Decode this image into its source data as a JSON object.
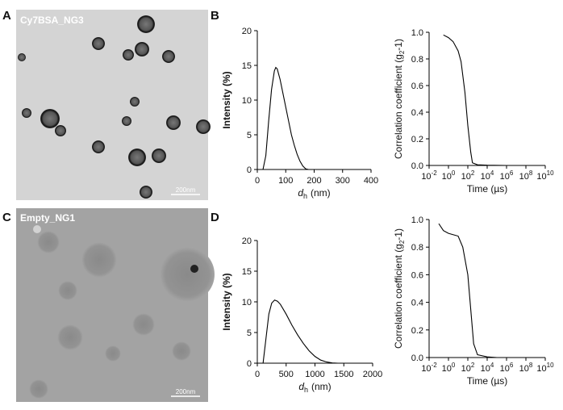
{
  "panels": [
    {
      "letter": "A",
      "label": "Cy7BSA_NG3",
      "scale_bar": "200nm"
    },
    {
      "letter": "B"
    },
    {
      "letter": "C",
      "label": "Empty_NG1",
      "scale_bar": "200nm"
    },
    {
      "letter": "D"
    }
  ],
  "chart_data": [
    {
      "type": "line",
      "xscale": "linear",
      "color": "#000000",
      "x_label": {
        "symbol": "d",
        "subscript": "h",
        "unit": "(nm)"
      },
      "y_label": {
        "text": "Intensity (%)"
      },
      "x": [
        20,
        30,
        40,
        50,
        60,
        65,
        70,
        80,
        90,
        100,
        110,
        120,
        130,
        140,
        150,
        160,
        170,
        180
      ],
      "values": [
        0,
        2,
        7,
        11.5,
        14.2,
        14.7,
        14.5,
        13,
        11,
        9,
        7,
        5,
        3.5,
        2.2,
        1.2,
        0.5,
        0.1,
        0
      ],
      "xlim": [
        0,
        400
      ],
      "xticks": [
        0,
        100,
        200,
        300,
        400
      ],
      "ylim": [
        0,
        20
      ],
      "yticks": [
        0,
        5,
        10,
        15,
        20
      ]
    },
    {
      "type": "line",
      "xscale": "log",
      "color": "#000000",
      "x_label": {
        "text": "Time (µs)"
      },
      "y_label": {
        "text": "Correlation coefficient (g",
        "subscript": "2",
        "after": "-1)"
      },
      "x": [
        0.3,
        1,
        3,
        10,
        20,
        50,
        100,
        200,
        300,
        1000,
        10000,
        1000000
      ],
      "values": [
        0.98,
        0.96,
        0.93,
        0.86,
        0.78,
        0.55,
        0.3,
        0.1,
        0.02,
        0.005,
        0.002,
        0
      ],
      "xlim": [
        0.01,
        10000000000
      ],
      "xticks": [
        {
          "value": 0.01,
          "label": "10",
          "exponent": "-2"
        },
        {
          "value": 1,
          "label": "10",
          "exponent": "0"
        },
        {
          "value": 100,
          "label": "10",
          "exponent": "2"
        },
        {
          "value": 10000,
          "label": "10",
          "exponent": "4"
        },
        {
          "value": 1000000,
          "label": "10",
          "exponent": "6"
        },
        {
          "value": 100000000,
          "label": "10",
          "exponent": "8"
        },
        {
          "value": 10000000000,
          "label": "10",
          "exponent": "10"
        }
      ],
      "ylim": [
        0,
        1
      ],
      "yticks": [
        {
          "value": 0,
          "label": "0.0"
        },
        {
          "value": 0.2,
          "label": "0.2"
        },
        {
          "value": 0.4,
          "label": "0.4"
        },
        {
          "value": 0.6,
          "label": "0.6"
        },
        {
          "value": 0.8,
          "label": "0.8"
        },
        {
          "value": 1,
          "label": "1.0"
        }
      ]
    },
    {
      "type": "line",
      "xscale": "linear",
      "color": "#000000",
      "x_label": {
        "symbol": "d",
        "subscript": "h",
        "unit": "(nm)"
      },
      "y_label": {
        "text": "Intensity (%)"
      },
      "x": [
        100,
        150,
        200,
        250,
        300,
        350,
        400,
        500,
        600,
        700,
        800,
        900,
        1000,
        1100,
        1200,
        1300,
        1400
      ],
      "values": [
        0,
        4,
        8,
        9.8,
        10.3,
        10.1,
        9.6,
        8,
        6.2,
        4.6,
        3.2,
        2,
        1.1,
        0.5,
        0.2,
        0.05,
        0
      ],
      "xlim": [
        0,
        2000
      ],
      "xticks": [
        0,
        500,
        1000,
        1500,
        2000
      ],
      "ylim": [
        0,
        20
      ],
      "yticks": [
        0,
        5,
        10,
        15,
        20
      ]
    },
    {
      "type": "line",
      "xscale": "log",
      "color": "#000000",
      "x_label": {
        "text": "Time (µs)"
      },
      "y_label": {
        "text": "Correlation coefficient (g",
        "subscript": "2",
        "after": "-1)"
      },
      "x": [
        0.1,
        0.3,
        1,
        10,
        30,
        100,
        200,
        400,
        1000,
        10000,
        100000
      ],
      "values": [
        0.97,
        0.92,
        0.9,
        0.88,
        0.8,
        0.6,
        0.35,
        0.1,
        0.02,
        0.005,
        0
      ],
      "xlim": [
        0.01,
        10000000000
      ],
      "xticks": [
        {
          "value": 0.01,
          "label": "10",
          "exponent": "-2"
        },
        {
          "value": 1,
          "label": "10",
          "exponent": "0"
        },
        {
          "value": 100,
          "label": "10",
          "exponent": "2"
        },
        {
          "value": 10000,
          "label": "10",
          "exponent": "4"
        },
        {
          "value": 1000000,
          "label": "10",
          "exponent": "6"
        },
        {
          "value": 100000000,
          "label": "10",
          "exponent": "8"
        },
        {
          "value": 10000000000,
          "label": "10",
          "exponent": "10"
        }
      ],
      "ylim": [
        0,
        1
      ],
      "yticks": [
        {
          "value": 0,
          "label": "0.0"
        },
        {
          "value": 0.2,
          "label": "0.2"
        },
        {
          "value": 0.4,
          "label": "0.4"
        },
        {
          "value": 0.6,
          "label": "0.6"
        },
        {
          "value": 0.8,
          "label": "0.8"
        },
        {
          "value": 1,
          "label": "1.0"
        }
      ]
    }
  ]
}
